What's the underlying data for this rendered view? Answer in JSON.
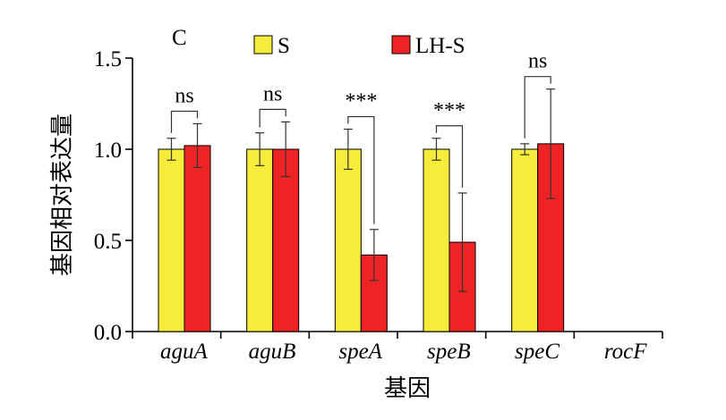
{
  "chart_data": {
    "type": "bar",
    "panel_label": "C",
    "xlabel": "基因",
    "ylabel": "基因相对表达量",
    "ylim": [
      0,
      1.5
    ],
    "yticks": [
      "0.0",
      "0.5",
      "1.0",
      "1.5"
    ],
    "ytick_values": [
      0,
      0.5,
      1.0,
      1.5
    ],
    "categories": [
      "aguA",
      "aguB",
      "speA",
      "speB",
      "speC",
      "rocF"
    ],
    "series": [
      {
        "name": "S",
        "color": "#f5ec3b",
        "values": [
          1.0,
          1.0,
          1.0,
          1.0,
          1.0,
          null
        ],
        "errors": [
          0.06,
          0.09,
          0.11,
          0.06,
          0.03,
          null
        ]
      },
      {
        "name": "LH-S",
        "color": "#ee2424",
        "values": [
          1.02,
          1.0,
          0.42,
          0.49,
          1.03,
          null
        ],
        "errors": [
          0.12,
          0.15,
          0.14,
          0.27,
          0.3,
          null
        ]
      }
    ],
    "significance": [
      {
        "category": "aguA",
        "label": "ns"
      },
      {
        "category": "aguB",
        "label": "ns"
      },
      {
        "category": "speA",
        "label": "***"
      },
      {
        "category": "speB",
        "label": "***"
      },
      {
        "category": "speC",
        "label": "ns"
      }
    ],
    "legend_position": "top"
  }
}
